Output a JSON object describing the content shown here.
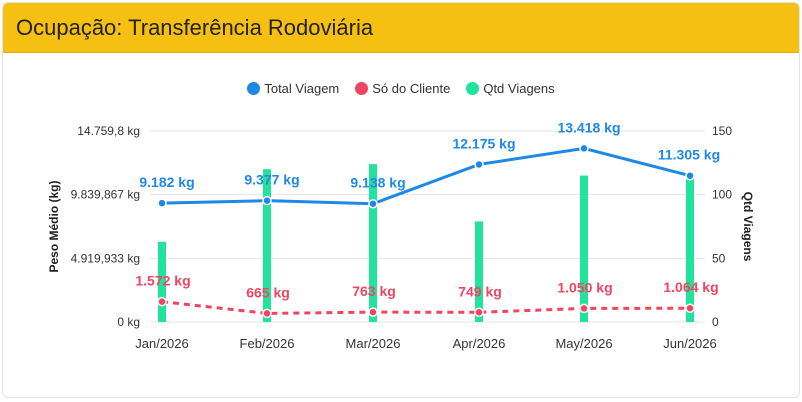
{
  "header": {
    "title": "Ocupação: Transferência Rodoviária"
  },
  "colors": {
    "header_bg": "#f6c012",
    "total": "#1e88e5",
    "cliente": "#ef4561",
    "viagens": "#21e39c"
  },
  "chart_data": {
    "type": "bar",
    "categories": [
      "Jan/2026",
      "Feb/2026",
      "Mar/2026",
      "Apr/2026",
      "May/2026",
      "Jun/2026"
    ],
    "ylabel": "Peso Médio (kg)",
    "y2label": "Qtd Viagens",
    "ylim": [
      0,
      14759.8
    ],
    "y2lim": [
      0,
      150
    ],
    "yticks": [
      "0 kg",
      "4.919,933 kg",
      "9.839,867 kg",
      "14.759,8 kg"
    ],
    "y2ticks": [
      "0",
      "50",
      "100",
      "150"
    ],
    "grid": true,
    "legend": "top-center",
    "series": [
      {
        "name": "Total Viagem",
        "type": "line",
        "axis": "left",
        "values": [
          9182,
          9377,
          9138,
          12175,
          13418,
          11305
        ],
        "labels": [
          "9.182 kg",
          "9.377 kg",
          "9.138 kg",
          "12.175 kg",
          "13.418 kg",
          "11.305 kg"
        ]
      },
      {
        "name": "Só do Cliente",
        "type": "line-dashed",
        "axis": "left",
        "values": [
          1572,
          665,
          763,
          749,
          1050,
          1064
        ],
        "labels": [
          "1.572 kg",
          "665 kg",
          "763 kg",
          "749 kg",
          "1.050 kg",
          "1.064 kg"
        ]
      },
      {
        "name": "Qtd Viagens",
        "type": "bar",
        "axis": "right",
        "values": [
          63,
          120,
          124,
          79,
          115,
          113
        ]
      }
    ]
  }
}
